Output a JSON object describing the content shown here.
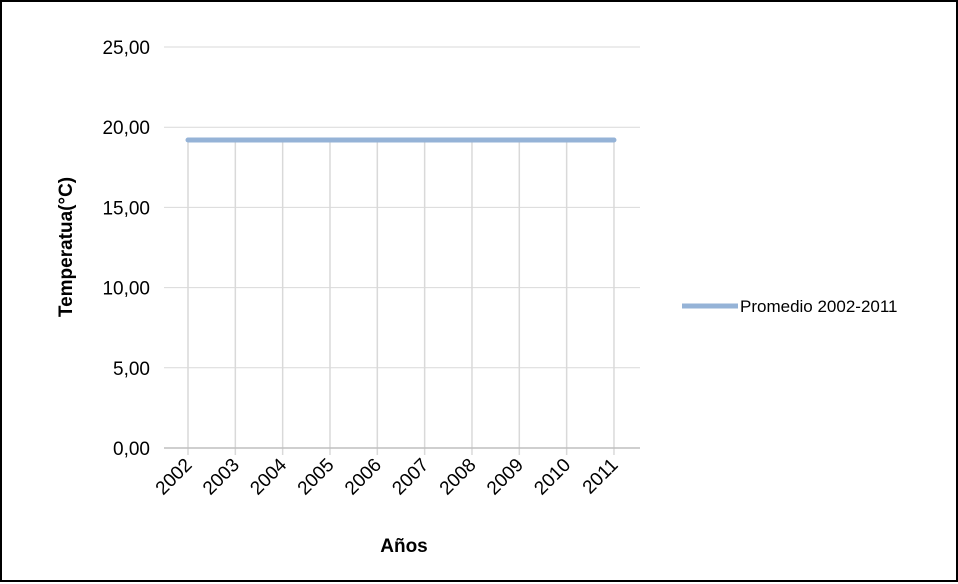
{
  "chart_data": {
    "type": "line",
    "title": "",
    "xlabel": "Años",
    "ylabel": "Temperatua(°C)",
    "categories": [
      "2002",
      "2003",
      "2004",
      "2005",
      "2006",
      "2007",
      "2008",
      "2009",
      "2010",
      "2011"
    ],
    "series": [
      {
        "name": "Promedio 2002-2011",
        "values": [
          19.2,
          19.2,
          19.2,
          19.2,
          19.2,
          19.2,
          19.2,
          19.2,
          19.2,
          19.2
        ],
        "color": "#95b3d7"
      }
    ],
    "ylim": [
      0,
      25
    ],
    "yticks": [
      0,
      5,
      10,
      15,
      20,
      25
    ],
    "ytick_labels": [
      "0,00",
      "5,00",
      "10,00",
      "15,00",
      "20,00",
      "25,00"
    ],
    "grid": "vertical and horizontal",
    "legend_position": "right"
  }
}
